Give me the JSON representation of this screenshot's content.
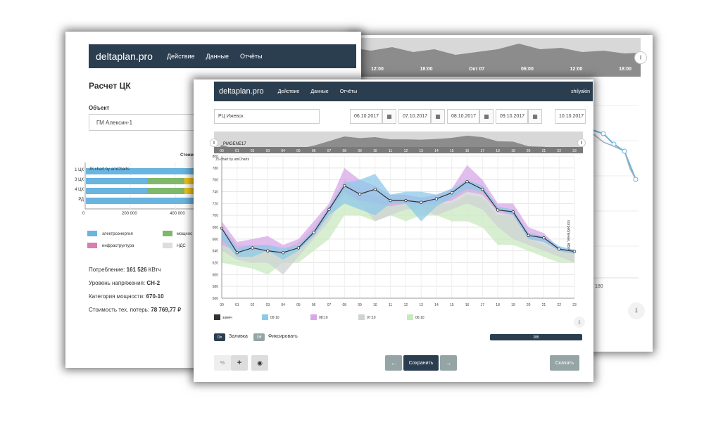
{
  "back_window": {
    "nav": {
      "brand": "deltaplan.pro",
      "items": [
        "Действие",
        "Данные",
        "Отчёты"
      ]
    },
    "title": "Расчет ЦК",
    "object_label": "Объект",
    "object_value": "ГМ Алексин-1",
    "chart_header": "Стоим",
    "amcharts_credit": "JS chart by amCharts",
    "bar_rows": [
      "1 ЦК",
      "3 ЦК",
      "4 ЦК",
      "РД"
    ],
    "x_ticks": [
      "0",
      "200 000",
      "400 000"
    ],
    "legend": [
      {
        "label": "электроэнергия",
        "color": "#6ab4e0"
      },
      {
        "label": "мощнос",
        "color": "#7fb86a"
      },
      {
        "label": "инфраструктура",
        "color": "#d77fae"
      },
      {
        "label": "НДС",
        "color": "#dddddd"
      }
    ],
    "info": [
      {
        "label": "Потребление:",
        "value": "161 526",
        "unit": "КВтч"
      },
      {
        "label": "Уровень напряжения:",
        "value": "СН-2",
        "unit": ""
      },
      {
        "label": "Категория мощности:",
        "value": "670-10",
        "unit": ""
      },
      {
        "label": "Стоимость тех. потерь:",
        "value": "78 769,77",
        "unit": "₽"
      }
    ]
  },
  "right_window": {
    "time_labels": [
      "12:00",
      "18:00",
      "Окт 07",
      "06:00",
      "12:00",
      "18:00"
    ],
    "y_ticks": [
      "180"
    ],
    "handle": "||"
  },
  "front_window": {
    "nav": {
      "brand": "deltaplan.pro",
      "items": [
        "Действие",
        "Данные",
        "Отчёты"
      ],
      "user": "shilyakin"
    },
    "object_input": "РЦ Ижевск",
    "dates": [
      "06.10.2017",
      "07.10.2017",
      "08.10.2017",
      "09.10.2017",
      "10.10.2017"
    ],
    "cal_icon": "▦",
    "scroll": {
      "label": "PMGENE17",
      "handle_left": "||",
      "handle_right": "||"
    },
    "chart_credit": "JS chart by amCharts",
    "axis_title": "потребление, КВтч",
    "toggles": [
      {
        "state": "On",
        "label": "Заливка"
      },
      {
        "state": "Off",
        "label": "Фиксировать"
      }
    ],
    "progress_value": "285",
    "buttons": {
      "percent": "%",
      "plus": "+",
      "eye": "◉",
      "prev": "←",
      "save": "Сохранить",
      "next": "→",
      "download": "Скачать",
      "download_icon": "⬇"
    }
  },
  "chart_data": {
    "type": "area",
    "x": [
      "00",
      "01",
      "02",
      "03",
      "04",
      "05",
      "06",
      "07",
      "08",
      "09",
      "10",
      "11",
      "12",
      "13",
      "14",
      "15",
      "16",
      "17",
      "18",
      "19",
      "20",
      "21",
      "22",
      "23"
    ],
    "ylim": [
      560,
      800
    ],
    "y_ticks": [
      560,
      580,
      600,
      620,
      640,
      660,
      680,
      700,
      720,
      740,
      760,
      780,
      800
    ],
    "ylabel": "потребление, КВтч",
    "series": [
      {
        "name": "замеч",
        "color": "#333333",
        "values": [
          678,
          637,
          645,
          640,
          637,
          645,
          671,
          710,
          750,
          736,
          744,
          725,
          725,
          722,
          728,
          738,
          757,
          744,
          709,
          706,
          666,
          662,
          643,
          639
        ]
      },
      {
        "name": "09:10",
        "color": "#8ecae8",
        "low": [
          660,
          630,
          630,
          640,
          625,
          640,
          665,
          700,
          720,
          710,
          700,
          720,
          720,
          690,
          715,
          730,
          745,
          740,
          710,
          700,
          660,
          655,
          640,
          635
        ],
        "high": [
          680,
          645,
          650,
          650,
          645,
          650,
          675,
          715,
          755,
          760,
          770,
          735,
          740,
          740,
          735,
          745,
          760,
          750,
          715,
          710,
          670,
          665,
          648,
          642
        ]
      },
      {
        "name": "08:10",
        "color": "#d8a8e8",
        "low": [
          650,
          640,
          640,
          640,
          635,
          650,
          665,
          705,
          740,
          725,
          720,
          715,
          720,
          718,
          720,
          725,
          740,
          735,
          705,
          700,
          660,
          655,
          640,
          635
        ],
        "high": [
          690,
          655,
          660,
          665,
          650,
          660,
          690,
          720,
          780,
          760,
          750,
          735,
          735,
          730,
          735,
          745,
          785,
          760,
          720,
          720,
          680,
          670,
          645,
          642
        ]
      },
      {
        "name": "07:10",
        "color": "#cfd3d3",
        "low": [
          640,
          625,
          620,
          620,
          600,
          630,
          660,
          690,
          735,
          720,
          690,
          700,
          710,
          710,
          700,
          710,
          720,
          710,
          680,
          660,
          650,
          640,
          630,
          620
        ],
        "high": [
          680,
          650,
          650,
          650,
          640,
          655,
          680,
          715,
          760,
          745,
          730,
          735,
          735,
          730,
          730,
          740,
          760,
          750,
          715,
          710,
          670,
          665,
          645,
          640
        ]
      },
      {
        "name": "06:10",
        "color": "#c9e9c0",
        "low": [
          620,
          615,
          610,
          600,
          620,
          620,
          640,
          660,
          700,
          700,
          690,
          700,
          690,
          700,
          700,
          690,
          690,
          680,
          650,
          650,
          640,
          630,
          620,
          620
        ],
        "high": [
          660,
          640,
          640,
          640,
          640,
          650,
          680,
          710,
          740,
          740,
          735,
          730,
          725,
          725,
          720,
          720,
          735,
          730,
          700,
          700,
          660,
          650,
          640,
          640
        ]
      }
    ]
  }
}
